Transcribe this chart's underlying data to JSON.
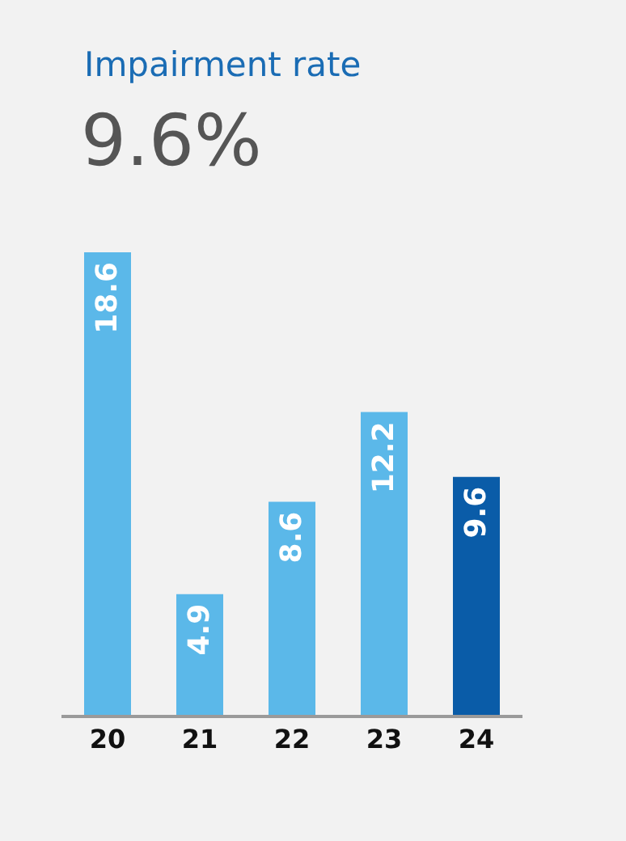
{
  "chart_data": {
    "type": "bar",
    "title": "Impairment rate",
    "subtitle": "9.6%",
    "categories": [
      "20",
      "21",
      "22",
      "23",
      "24"
    ],
    "values": [
      18.6,
      4.9,
      8.6,
      12.2,
      9.6
    ],
    "colors": [
      "#5bb8e9",
      "#5bb8e9",
      "#5bb8e9",
      "#5bb8e9",
      "#0a5ca8"
    ],
    "data_labels": true,
    "grid": false,
    "legend": false
  }
}
